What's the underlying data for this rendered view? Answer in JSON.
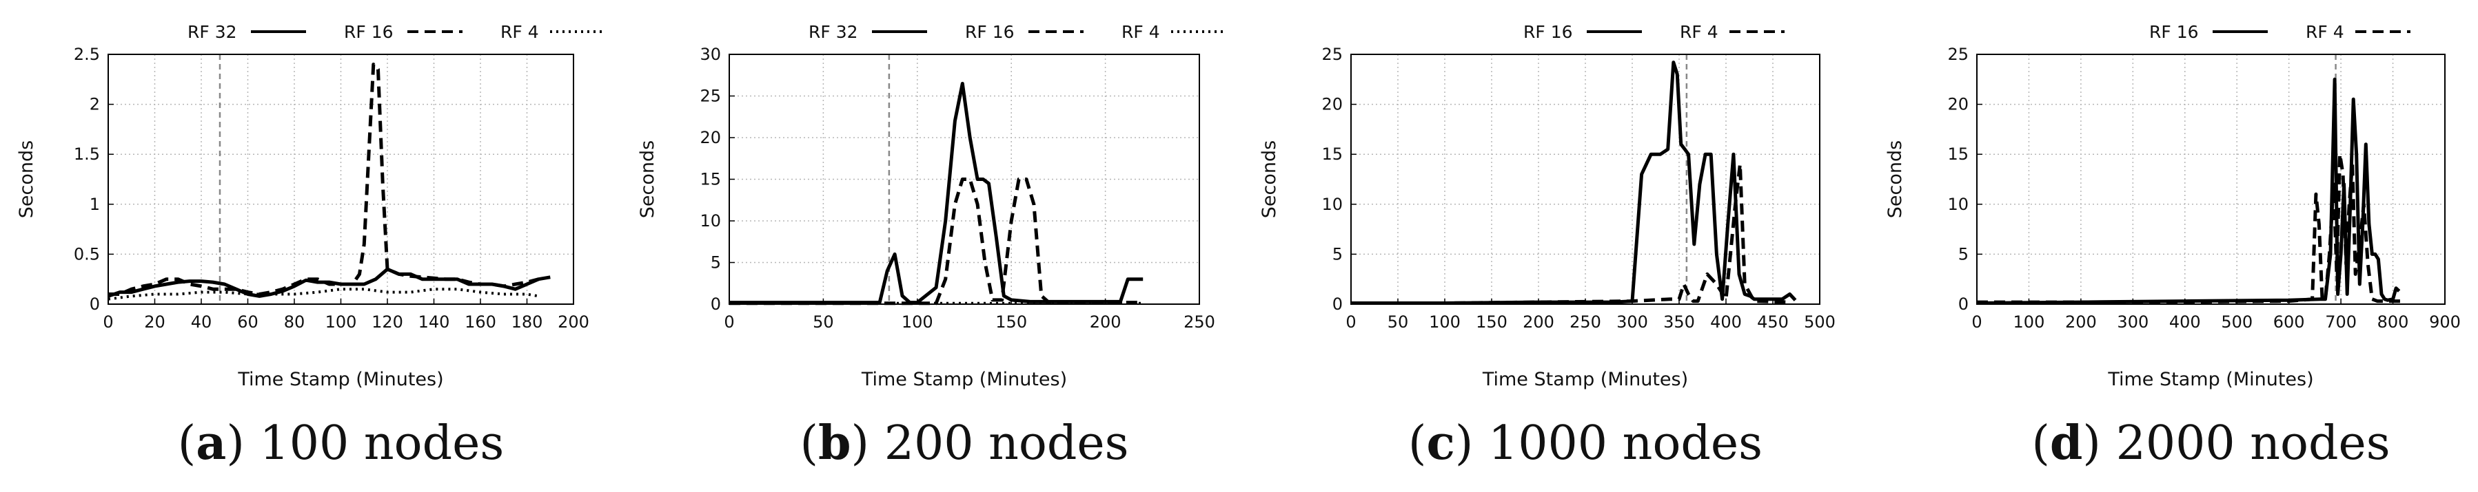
{
  "chart_data": [
    {
      "type": "line",
      "caption_letter": "a",
      "caption_text": "100 nodes",
      "xlabel": "Time Stamp (Minutes)",
      "ylabel": "Seconds",
      "xlim": [
        0,
        200
      ],
      "ylim": [
        0,
        2.5
      ],
      "xticks": [
        "0",
        "20",
        "40",
        "60",
        "80",
        "100",
        "120",
        "140",
        "160",
        "180",
        "200"
      ],
      "yticks": [
        "0",
        "0.5",
        "1",
        "1.5",
        "2",
        "2.5"
      ],
      "grid": true,
      "legend_position": "top",
      "vline": 48,
      "series": [
        {
          "name": "RF 32",
          "style": "solid",
          "x": [
            0,
            5,
            10,
            15,
            20,
            25,
            30,
            35,
            40,
            45,
            50,
            55,
            60,
            65,
            70,
            75,
            80,
            85,
            90,
            95,
            100,
            105,
            110,
            115,
            120,
            125,
            130,
            135,
            140,
            145,
            150,
            155,
            160,
            165,
            170,
            175,
            180,
            185,
            190
          ],
          "y": [
            0.08,
            0.12,
            0.12,
            0.15,
            0.18,
            0.2,
            0.22,
            0.23,
            0.23,
            0.22,
            0.2,
            0.15,
            0.1,
            0.08,
            0.1,
            0.13,
            0.18,
            0.24,
            0.22,
            0.22,
            0.2,
            0.2,
            0.2,
            0.25,
            0.35,
            0.3,
            0.3,
            0.25,
            0.25,
            0.25,
            0.25,
            0.2,
            0.2,
            0.2,
            0.18,
            0.15,
            0.2,
            0.25,
            0.27
          ]
        },
        {
          "name": "RF 16",
          "style": "dashed",
          "x": [
            0,
            5,
            10,
            15,
            20,
            25,
            30,
            35,
            40,
            45,
            50,
            55,
            60,
            65,
            70,
            75,
            80,
            85,
            90,
            95,
            100,
            105,
            108,
            110,
            112,
            114,
            116,
            118,
            120,
            125,
            130,
            135,
            140,
            145,
            150,
            155,
            160,
            165,
            170,
            175,
            180,
            185
          ],
          "y": [
            0.1,
            0.1,
            0.15,
            0.18,
            0.2,
            0.25,
            0.25,
            0.2,
            0.18,
            0.15,
            0.15,
            0.15,
            0.12,
            0.1,
            0.12,
            0.15,
            0.2,
            0.25,
            0.25,
            0.2,
            0.2,
            0.2,
            0.3,
            0.6,
            1.5,
            2.4,
            2.35,
            1.2,
            0.35,
            0.3,
            0.28,
            0.27,
            0.26,
            0.25,
            0.25,
            0.22,
            0.2,
            0.2,
            0.18,
            0.2,
            0.22,
            0.25
          ]
        },
        {
          "name": "RF 4",
          "style": "dotted",
          "x": [
            0,
            10,
            20,
            30,
            40,
            50,
            60,
            70,
            80,
            90,
            100,
            110,
            120,
            130,
            140,
            150,
            160,
            170,
            180,
            185
          ],
          "y": [
            0.05,
            0.08,
            0.1,
            0.1,
            0.12,
            0.12,
            0.1,
            0.1,
            0.1,
            0.12,
            0.15,
            0.15,
            0.12,
            0.12,
            0.15,
            0.15,
            0.12,
            0.1,
            0.1,
            0.08
          ]
        }
      ]
    },
    {
      "type": "line",
      "caption_letter": "b",
      "caption_text": "200 nodes",
      "xlabel": "Time Stamp (Minutes)",
      "ylabel": "Seconds",
      "xlim": [
        0,
        250
      ],
      "ylim": [
        0,
        30
      ],
      "xticks": [
        "0",
        "50",
        "100",
        "150",
        "200",
        "250"
      ],
      "yticks": [
        "0",
        "5",
        "10",
        "15",
        "20",
        "25",
        "30"
      ],
      "grid": true,
      "legend_position": "top",
      "vline": 85,
      "series": [
        {
          "name": "RF 32",
          "style": "solid",
          "x": [
            0,
            50,
            80,
            84,
            88,
            92,
            96,
            100,
            110,
            115,
            120,
            124,
            128,
            132,
            135,
            138,
            142,
            146,
            150,
            160,
            170,
            180,
            190,
            200,
            208,
            212,
            216,
            220
          ],
          "y": [
            0.2,
            0.2,
            0.2,
            4.0,
            6.0,
            1.0,
            0.2,
            0.2,
            2.0,
            10.0,
            22.0,
            26.5,
            20.0,
            15.0,
            15.0,
            14.5,
            8.0,
            1.0,
            0.5,
            0.3,
            0.3,
            0.3,
            0.3,
            0.3,
            0.3,
            3.0,
            3.0,
            3.0
          ]
        },
        {
          "name": "RF 16",
          "style": "dashed",
          "x": [
            0,
            100,
            110,
            115,
            120,
            124,
            128,
            132,
            136,
            140,
            145,
            150,
            154,
            158,
            162,
            166,
            170,
            180,
            200,
            220
          ],
          "y": [
            0.1,
            0.1,
            0.1,
            3.0,
            12.0,
            15.0,
            15.0,
            12.0,
            5.0,
            0.5,
            0.5,
            10.0,
            15.0,
            15.0,
            12.0,
            1.0,
            0.2,
            0.2,
            0.2,
            0.2
          ]
        },
        {
          "name": "RF 4",
          "style": "dotted",
          "x": [
            0,
            50,
            100,
            150,
            200,
            220
          ],
          "y": [
            0.1,
            0.1,
            0.1,
            0.1,
            0.1,
            0.1
          ]
        }
      ]
    },
    {
      "type": "line",
      "caption_letter": "c",
      "caption_text": "1000 nodes",
      "xlabel": "Time Stamp (Minutes)",
      "ylabel": "Seconds",
      "xlim": [
        0,
        500
      ],
      "ylim": [
        0,
        25
      ],
      "xticks": [
        "0",
        "50",
        "100",
        "150",
        "200",
        "250",
        "300",
        "350",
        "400",
        "450",
        "500"
      ],
      "yticks": [
        "0",
        "5",
        "10",
        "15",
        "20",
        "25"
      ],
      "grid": true,
      "legend_position": "top",
      "vline": 358,
      "series": [
        {
          "name": "RF 16",
          "style": "solid",
          "x": [
            0,
            100,
            200,
            280,
            300,
            310,
            320,
            330,
            338,
            344,
            348,
            352,
            356,
            360,
            366,
            372,
            378,
            384,
            390,
            396,
            402,
            408,
            414,
            420,
            426,
            430,
            460,
            468,
            474
          ],
          "y": [
            0.1,
            0.1,
            0.2,
            0.2,
            0.3,
            13.0,
            15.0,
            15.0,
            15.5,
            24.2,
            23.0,
            16.0,
            15.5,
            15.0,
            6.0,
            12.0,
            15.0,
            15.0,
            5.0,
            0.5,
            8.0,
            15.0,
            3.0,
            1.0,
            0.8,
            0.5,
            0.5,
            1.0,
            0.4
          ]
        },
        {
          "name": "RF 4",
          "style": "dashed",
          "x": [
            0,
            100,
            200,
            300,
            340,
            350,
            355,
            360,
            365,
            370,
            380,
            390,
            400,
            410,
            415,
            420,
            430,
            470
          ],
          "y": [
            0.1,
            0.1,
            0.2,
            0.3,
            0.5,
            0.5,
            2.0,
            1.0,
            0.3,
            0.3,
            3.0,
            2.0,
            0.5,
            10.0,
            14.0,
            2.0,
            0.3,
            0.2
          ]
        }
      ]
    },
    {
      "type": "line",
      "caption_letter": "d",
      "caption_text": "2000 nodes",
      "xlabel": "Time Stamp (Minutes)",
      "ylabel": "Seconds",
      "xlim": [
        0,
        900
      ],
      "ylim": [
        0,
        25
      ],
      "xticks": [
        "0",
        "100",
        "200",
        "300",
        "400",
        "500",
        "600",
        "700",
        "800",
        "900"
      ],
      "yticks": [
        "0",
        "5",
        "10",
        "15",
        "20",
        "25"
      ],
      "grid": true,
      "legend_position": "top",
      "vline": 690,
      "series": [
        {
          "name": "RF 16",
          "style": "solid",
          "x": [
            0,
            200,
            400,
            600,
            660,
            670,
            680,
            688,
            694,
            700,
            706,
            712,
            718,
            724,
            730,
            736,
            742,
            748,
            754,
            760,
            766,
            772,
            778,
            784,
            790,
            800,
            806,
            812
          ],
          "y": [
            0.1,
            0.2,
            0.3,
            0.4,
            0.5,
            0.5,
            5.0,
            22.5,
            1.0,
            5.0,
            12.0,
            1.0,
            10.0,
            20.5,
            15.0,
            2.0,
            8.0,
            16.0,
            8.0,
            5.0,
            5.0,
            4.5,
            1.0,
            0.5,
            0.4,
            0.5,
            1.6,
            1.3
          ]
        },
        {
          "name": "RF 4",
          "style": "dashed",
          "x": [
            0,
            300,
            600,
            645,
            652,
            658,
            664,
            670,
            678,
            686,
            692,
            698,
            704,
            710,
            716,
            722,
            728,
            736,
            744,
            752,
            760,
            770,
            800,
            820
          ],
          "y": [
            0.2,
            0.2,
            0.3,
            0.5,
            11.0,
            8.0,
            0.5,
            0.5,
            5.0,
            12.0,
            3.0,
            15.0,
            13.0,
            4.0,
            10.0,
            14.0,
            3.0,
            6.0,
            10.0,
            4.0,
            0.5,
            0.3,
            0.3,
            0.3
          ]
        }
      ]
    }
  ]
}
